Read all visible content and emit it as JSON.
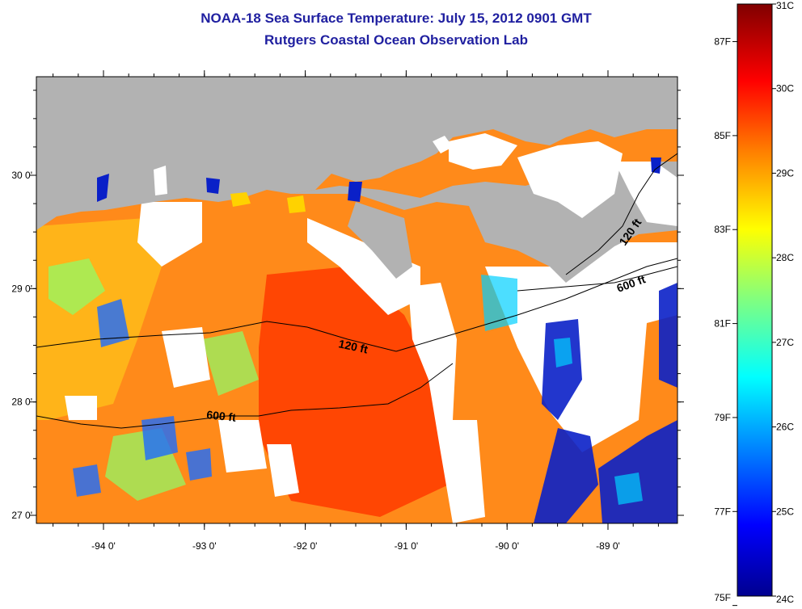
{
  "header": {
    "title": "NOAA-18 Sea Surface Temperature:  July 15, 2012 0901 GMT",
    "subtitle": "Rutgers Coastal Ocean Observation Lab"
  },
  "map": {
    "lon_range": [
      -94.5,
      -88.3
    ],
    "lat_range": [
      26.95,
      28.8
    ],
    "lon_ticks": [
      {
        "value": -94,
        "label": "-94 0'"
      },
      {
        "value": -93,
        "label": "-93 0'"
      },
      {
        "value": -92,
        "label": "-92 0'"
      },
      {
        "value": -91,
        "label": "-91 0'"
      },
      {
        "value": -90,
        "label": "-90 0'"
      },
      {
        "value": -89,
        "label": "-89 0'"
      }
    ],
    "lat_ticks": [
      {
        "value": 27,
        "label": "27 0'"
      },
      {
        "value": 28,
        "label": "28 0'"
      },
      {
        "value": 29,
        "label": "29 0'"
      },
      {
        "value": 30,
        "label": "30 0'"
      }
    ],
    "contours": [
      {
        "label": "120 ft"
      },
      {
        "label": "600 ft"
      },
      {
        "label": "120 ft"
      },
      {
        "label": "600 ft"
      }
    ],
    "colors": {
      "land": "#b2b2b2",
      "cloud": "#ffffff"
    }
  },
  "colorbar": {
    "min_c": 24,
    "max_c": 31,
    "celsius_labels": [
      "31C",
      "30C",
      "29C",
      "28C",
      "27C",
      "26C",
      "25C",
      "24C"
    ],
    "fahrenheit_labels": [
      "87F",
      "85F",
      "83F",
      "81F",
      "79F",
      "77F",
      "75F"
    ],
    "colormap": [
      "#00008f",
      "#0000ff",
      "#0080ff",
      "#00ffff",
      "#80ff80",
      "#ffff00",
      "#ff8000",
      "#ff0000",
      "#800000"
    ]
  }
}
